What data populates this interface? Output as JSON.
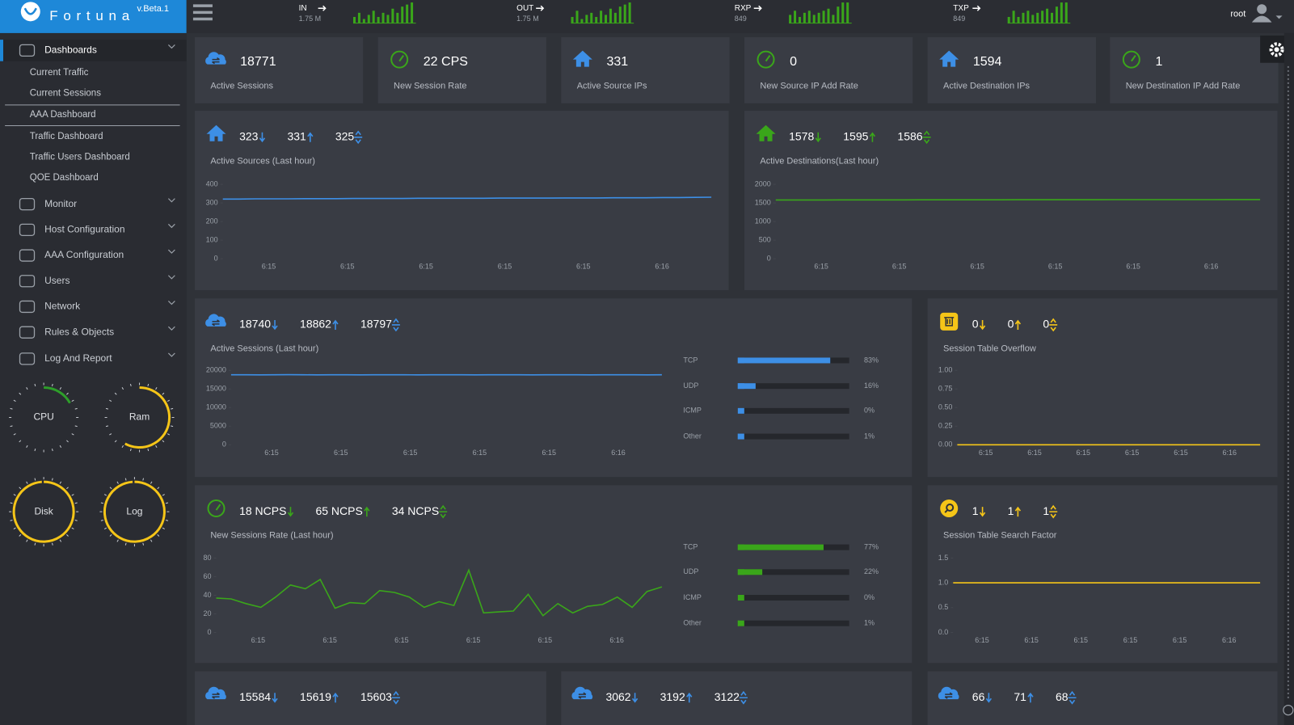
{
  "header": {
    "brand": "F o r t u n a",
    "version": "v.Beta.1",
    "user": "root",
    "stats": [
      {
        "label": "IN",
        "value": "1.75 M",
        "bars": [
          3,
          5,
          2,
          4,
          6,
          3,
          5,
          4,
          7,
          5,
          8,
          9,
          10
        ]
      },
      {
        "label": "OUT",
        "value": "1.75 M",
        "bars": [
          3,
          6,
          2,
          4,
          5,
          3,
          6,
          4,
          7,
          5,
          8,
          9,
          10
        ]
      },
      {
        "label": "RXP",
        "value": "849",
        "bars": [
          4,
          6,
          3,
          5,
          6,
          4,
          5,
          6,
          7,
          4,
          8,
          10,
          10
        ]
      },
      {
        "label": "TXP",
        "value": "849",
        "bars": [
          3,
          6,
          3,
          5,
          6,
          4,
          5,
          6,
          7,
          5,
          8,
          10,
          10
        ]
      }
    ]
  },
  "sidebar": {
    "menu": [
      {
        "label": "Dashboards",
        "items": [
          "Current Traffic",
          "Current Sessions",
          "AAA Dashboard",
          "Traffic Dashboard",
          "Traffic Users Dashboard",
          "QOE Dashboard"
        ]
      },
      {
        "label": "Monitor"
      },
      {
        "label": "Host Configuration"
      },
      {
        "label": "AAA Configuration"
      },
      {
        "label": "Users"
      },
      {
        "label": "Network"
      },
      {
        "label": "Rules & Objects"
      },
      {
        "label": "Log And Report"
      }
    ],
    "gauges": [
      {
        "label": "CPU",
        "value": 17,
        "color": "#2e9e2a"
      },
      {
        "label": "Ram",
        "value": 58,
        "color": "#f5c518"
      },
      {
        "label": "Disk",
        "value": 99,
        "color": "#f5c518"
      },
      {
        "label": "Log",
        "value": 99,
        "color": "#f5c518"
      }
    ]
  },
  "cards": [
    {
      "value": "18771",
      "label": "Active Sessions"
    },
    {
      "value": "22 CPS",
      "label": "New Session Rate"
    },
    {
      "value": "331",
      "label": "Active Source IPs"
    },
    {
      "value": "0",
      "label": "New Source IP Add Rate"
    },
    {
      "value": "1594",
      "label": "Active Destination IPs"
    },
    {
      "value": "1",
      "label": "New Destination IP Add Rate"
    }
  ],
  "panels": [
    {
      "stats": [
        "323",
        "331",
        "325"
      ],
      "title": "Active Sources (Last hour)",
      "color": "#3d8fe6",
      "chart": {
        "ylim": [
          0,
          400
        ],
        "yticks": [
          0,
          100,
          200,
          300,
          400
        ],
        "xlabels": [
          "6:15",
          "6:15",
          "6:15",
          "6:15",
          "6:15",
          "6:16"
        ],
        "values": [
          321,
          321,
          322,
          322,
          322,
          323,
          323,
          323,
          324,
          324,
          324,
          324,
          325,
          325,
          325,
          325,
          325,
          326,
          326,
          326,
          326,
          327,
          327,
          327,
          328,
          328,
          328,
          329,
          329,
          330,
          331
        ]
      }
    },
    {
      "stats": [
        "1578",
        "1595",
        "1586"
      ],
      "title": "Active Destinations(Last hour)",
      "color": "#3aa61a",
      "chart": {
        "ylim": [
          0,
          2000
        ],
        "yticks": [
          0,
          500,
          1000,
          1500,
          2000
        ],
        "xlabels": [
          "6:15",
          "6:15",
          "6:15",
          "6:15",
          "6:15",
          "6:16"
        ],
        "values": [
          1580,
          1580,
          1581,
          1581,
          1582,
          1582,
          1582,
          1583,
          1583,
          1584,
          1584,
          1584,
          1585,
          1585,
          1585,
          1586,
          1586,
          1586,
          1587,
          1587,
          1587,
          1588,
          1588,
          1588,
          1589,
          1589,
          1590,
          1590,
          1591,
          1591,
          1592
        ]
      }
    },
    {
      "stats": [
        "18740",
        "18862",
        "18797"
      ],
      "title": "Active Sessions (Last hour)",
      "color": "#3d8fe6",
      "chart": {
        "ylim": [
          0,
          20000
        ],
        "yticks": [
          0,
          5000,
          10000,
          15000,
          20000
        ],
        "xlabels": [
          "6:15",
          "6:15",
          "6:15",
          "6:15",
          "6:15",
          "6:16"
        ],
        "values": [
          18800,
          18810,
          18790,
          18800,
          18820,
          18800,
          18790,
          18810,
          18800,
          18790,
          18800,
          18810,
          18800,
          18790,
          18800,
          18810,
          18800,
          18790,
          18800,
          18800,
          18810,
          18790,
          18800,
          18810,
          18800,
          18790,
          18800,
          18800,
          18810,
          18790,
          18800
        ]
      },
      "protocols": [
        {
          "name": "TCP",
          "value": 83,
          "label": "83%"
        },
        {
          "name": "UDP",
          "value": 16,
          "label": "16%"
        },
        {
          "name": "ICMP",
          "value": 0,
          "label": "0%"
        },
        {
          "name": "Other",
          "value": 1,
          "label": "1%"
        }
      ]
    },
    {
      "stats": [
        "0",
        "0",
        "0"
      ],
      "title": "Session Table Overflow",
      "color": "#f5c518",
      "chart": {
        "ylim": [
          0,
          1
        ],
        "yticks": [
          {
            "value": 0,
            "label": "0.00"
          },
          {
            "value": 0.25,
            "label": "0.25"
          },
          {
            "value": 0.5,
            "label": "0.50"
          },
          {
            "value": 0.75,
            "label": "0.75"
          },
          {
            "value": 1,
            "label": "1.00"
          }
        ],
        "xlabels": [
          "6:15",
          "6:15",
          "6:15",
          "6:15",
          "6:15",
          "6:16"
        ],
        "values": [
          0,
          0,
          0,
          0,
          0,
          0,
          0,
          0,
          0,
          0,
          0,
          0,
          0,
          0,
          0,
          0,
          0,
          0,
          0,
          0
        ]
      }
    },
    {
      "stats": [
        "18 NCPS",
        "65 NCPS",
        "34 NCPS"
      ],
      "title": "New Sessions Rate (Last hour)",
      "color": "#3aa61a",
      "chart": {
        "ylim": [
          0,
          80
        ],
        "yticks": [
          0,
          20,
          40,
          60,
          80
        ],
        "xlabels": [
          "6:15",
          "6:15",
          "6:15",
          "6:15",
          "6:15",
          "6:16"
        ],
        "values": [
          37,
          36,
          31,
          27,
          38,
          51,
          47,
          57,
          26,
          32,
          31,
          45,
          43,
          38,
          27,
          33,
          29,
          67,
          21,
          22,
          23,
          41,
          18,
          31,
          21,
          28,
          30,
          38,
          27,
          44,
          49
        ]
      },
      "protocols": [
        {
          "name": "TCP",
          "value": 77,
          "label": "77%"
        },
        {
          "name": "UDP",
          "value": 22,
          "label": "22%"
        },
        {
          "name": "ICMP",
          "value": 0,
          "label": "0%"
        },
        {
          "name": "Other",
          "value": 1,
          "label": "1%"
        }
      ]
    },
    {
      "stats": [
        "1",
        "1",
        "1"
      ],
      "title": "Session Table Search Factor",
      "color": "#f5c518",
      "chart": {
        "ylim": [
          0,
          1.5
        ],
        "yticks": [
          {
            "value": 0,
            "label": "0.0"
          },
          {
            "value": 0.5,
            "label": "0.5"
          },
          {
            "value": 1,
            "label": "1.0"
          },
          {
            "value": 1.5,
            "label": "1.5"
          }
        ],
        "xlabels": [
          "6:15",
          "6:15",
          "6:15",
          "6:15",
          "6:15",
          "6:16"
        ],
        "values": [
          1,
          1,
          1,
          1,
          1,
          1,
          1,
          1,
          1,
          1,
          1,
          1,
          1,
          1,
          1,
          1,
          1,
          1,
          1,
          1
        ]
      }
    },
    {
      "stats": [
        "15584",
        "15619",
        "15603"
      ],
      "color": "#3d8fe6"
    },
    {
      "stats": [
        "3062",
        "3192",
        "3122"
      ],
      "color": "#3d8fe6"
    },
    {
      "stats": [
        "66",
        "71",
        "68"
      ],
      "color": "#3d8fe6"
    }
  ]
}
